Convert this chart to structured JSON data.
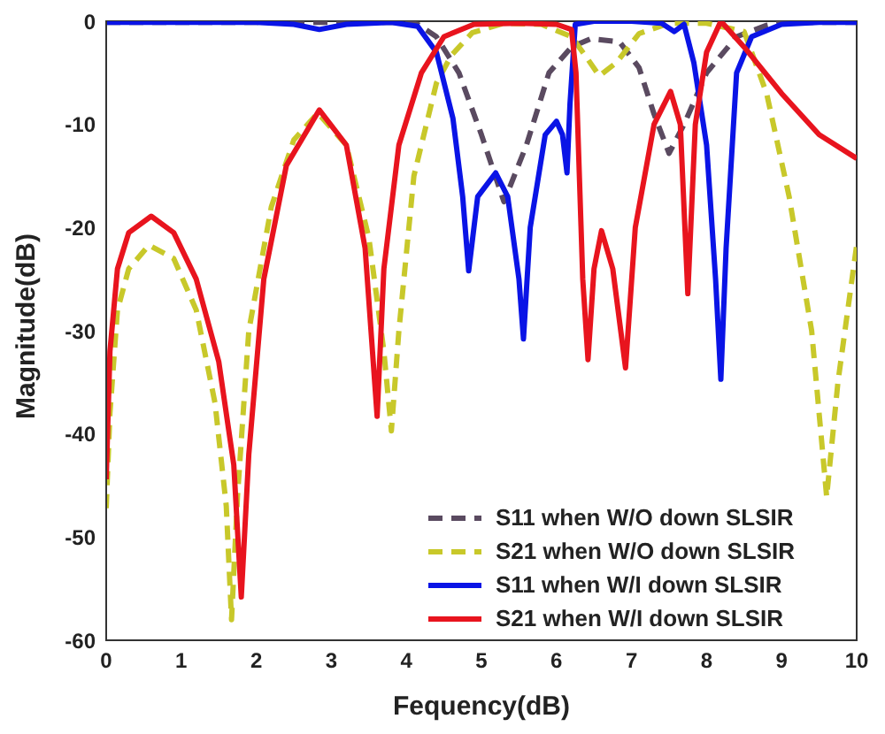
{
  "chart_data": {
    "type": "line",
    "xlabel": "Fequency(dB)",
    "ylabel": "Magnitude(dB)",
    "xlim": [
      0,
      10
    ],
    "xticks": [
      0,
      1,
      2,
      3,
      4,
      5,
      6,
      7,
      8,
      9,
      10
    ],
    "ylim": [
      -60,
      0
    ],
    "yticks": [
      -60,
      -50,
      -40,
      -30,
      -20,
      -10,
      0
    ],
    "grid": false,
    "legend": "bottom right",
    "marker": "none",
    "series": [
      {
        "name": "S11 when W/O down SLSIR",
        "color": "#5a4a60",
        "line_style": "dashed",
        "x": [
          0,
          2,
          4.0,
          4.15,
          4.4,
          4.7,
          5.0,
          5.3,
          5.6,
          5.9,
          6.2,
          6.46,
          6.84,
          7.1,
          7.3,
          7.5,
          7.7,
          8.0,
          8.4,
          8.8,
          9.0,
          9.5,
          10
        ],
        "values": [
          -0.1,
          -0.1,
          -0.1,
          -0.3,
          -1.5,
          -5,
          -11,
          -17.5,
          -12,
          -5,
          -2.5,
          -1.7,
          -2,
          -4.5,
          -9,
          -12.8,
          -10,
          -5,
          -1.5,
          -0.4,
          -0.1,
          -0.1,
          -0.1
        ]
      },
      {
        "name": "S21 when W/O down SLSIR",
        "color": "#c8c82a",
        "line_style": "dashed",
        "x": [
          0,
          0.05,
          0.15,
          0.3,
          0.57,
          0.9,
          1.2,
          1.45,
          1.6,
          1.67,
          1.75,
          1.9,
          2.2,
          2.5,
          2.82,
          3.2,
          3.5,
          3.7,
          3.8,
          3.9,
          4.1,
          4.4,
          4.6,
          4.88,
          5.3,
          5.8,
          6.2,
          6.4,
          6.57,
          6.8,
          7.1,
          7.5,
          8.0,
          8.5,
          8.8,
          9.1,
          9.4,
          9.6,
          9.75,
          9.9,
          10
        ],
        "values": [
          -47.2,
          -38,
          -28,
          -24,
          -21.7,
          -23,
          -28,
          -37,
          -47,
          -58,
          -46,
          -30,
          -18,
          -11.5,
          -8.9,
          -12,
          -21,
          -32,
          -39.7,
          -30,
          -15,
          -6,
          -3.3,
          -1.1,
          -0.2,
          -0.3,
          -1.5,
          -3.5,
          -5.3,
          -4,
          -1.2,
          -0.2,
          -0.2,
          -1,
          -7,
          -17,
          -30,
          -46.1,
          -35,
          -27,
          -21.7
        ]
      },
      {
        "name": "S11 when W/I down SLSIR",
        "color": "#0a14e6",
        "line_style": "solid",
        "x": [
          0,
          1,
          2,
          2.5,
          2.84,
          3.2,
          3.8,
          4.15,
          4.4,
          4.62,
          4.75,
          4.83,
          4.95,
          5.19,
          5.35,
          5.5,
          5.56,
          5.65,
          5.85,
          6.0,
          6.08,
          6.14,
          6.18,
          6.25,
          6.5,
          7.0,
          7.4,
          7.57,
          7.7,
          7.83,
          8.0,
          8.12,
          8.19,
          8.26,
          8.4,
          8.6,
          9.0,
          9.5,
          10
        ],
        "values": [
          -0.1,
          -0.1,
          -0.1,
          -0.3,
          -0.8,
          -0.3,
          -0.1,
          -0.5,
          -3,
          -9.4,
          -17,
          -24.2,
          -17,
          -14.7,
          -17,
          -25,
          -30.8,
          -20,
          -11,
          -9.7,
          -11,
          -14.7,
          -8,
          -0.3,
          0,
          0,
          -0.2,
          -1,
          -0.3,
          -4,
          -12,
          -25,
          -34.7,
          -22,
          -5,
          -1.5,
          -0.3,
          -0.1,
          -0.1
        ]
      },
      {
        "name": "S21 when W/I down SLSIR",
        "color": "#e8141e",
        "line_style": "solid",
        "x": [
          0,
          0.05,
          0.15,
          0.3,
          0.6,
          0.9,
          1.2,
          1.5,
          1.7,
          1.8,
          1.9,
          2.1,
          2.4,
          2.84,
          3.2,
          3.45,
          3.61,
          3.7,
          3.9,
          4.2,
          4.5,
          4.9,
          5.5,
          6.0,
          6.2,
          6.26,
          6.35,
          6.42,
          6.5,
          6.6,
          6.75,
          6.92,
          7.05,
          7.3,
          7.52,
          7.65,
          7.75,
          7.85,
          8.0,
          8.19,
          8.5,
          9.0,
          9.5,
          10
        ],
        "values": [
          -44.4,
          -32,
          -24,
          -20.5,
          -18.9,
          -20.5,
          -25,
          -33,
          -43,
          -55.8,
          -42,
          -25,
          -14,
          -8.6,
          -12,
          -22,
          -38.3,
          -24,
          -12,
          -5,
          -1.5,
          -0.3,
          -0.2,
          -0.3,
          -0.8,
          -5,
          -25,
          -32.8,
          -24,
          -20.3,
          -24,
          -33.6,
          -20,
          -10,
          -6.8,
          -10,
          -26.4,
          -10,
          -3,
          0,
          -2.5,
          -7,
          -11,
          -13.3
        ]
      }
    ]
  }
}
